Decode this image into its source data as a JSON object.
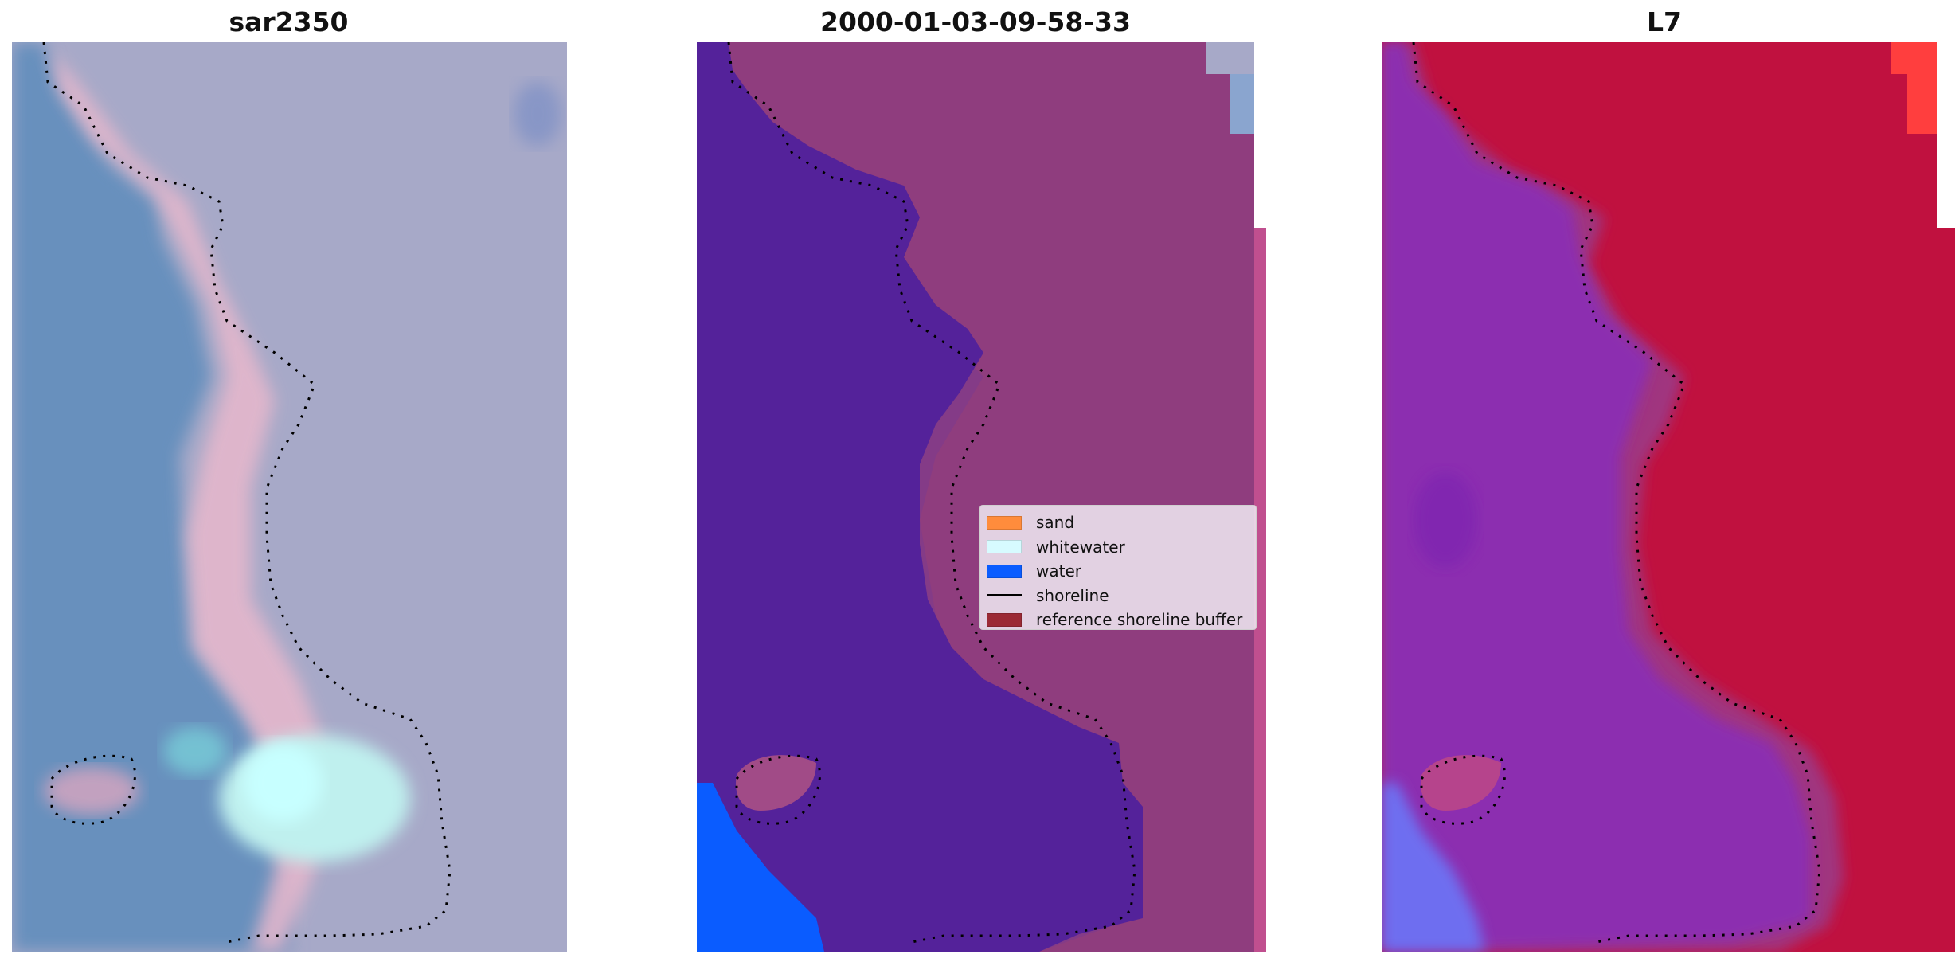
{
  "panels": [
    {
      "title": "sar2350"
    },
    {
      "title": "2000-01-03-09-58-33"
    },
    {
      "title": "L7"
    }
  ],
  "legend": {
    "items": [
      {
        "label": "sand",
        "color": "#ff8c3c"
      },
      {
        "label": "whitewater",
        "color": "#d7fbff"
      },
      {
        "label": "water",
        "color": "#0a5cff"
      },
      {
        "label": "shoreline",
        "color": "#000000"
      },
      {
        "label": "reference shoreline buffer",
        "color": "#9b2a35"
      }
    ]
  },
  "colors": {
    "classified_water": "#54229a",
    "classified_land": "#8f3d7e",
    "classified_water_blue": "#0a5cff",
    "l7_land": "#c0113f",
    "l7_water": "#8c2fb0",
    "rgb_water": "#6a93c0",
    "rgb_land": "#a8a8c6"
  }
}
